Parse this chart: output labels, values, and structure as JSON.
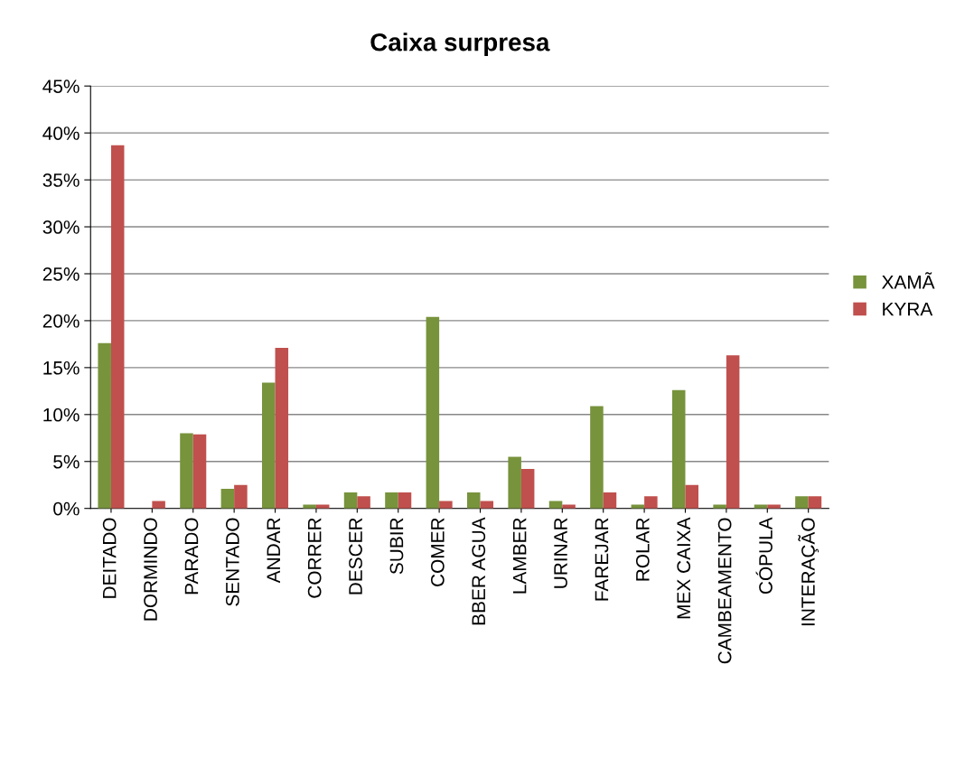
{
  "chart_data": {
    "type": "bar",
    "title": "Caixa surpresa",
    "categories": [
      "DEITADO",
      "DORMINDO",
      "PARADO",
      "SENTADO",
      "ANDAR",
      "CORRER",
      "DESCER",
      "SUBIR",
      "COMER",
      "BBER AGUA",
      "LAMBER",
      "URINAR",
      "FAREJAR",
      "ROLAR",
      "MEX CAIXA",
      "CAMBEAMENTO",
      "CÓPULA",
      "INTERAÇÃO"
    ],
    "series": [
      {
        "name": "XAMÃ",
        "color": "#77933c",
        "values": [
          17.6,
          0,
          8.0,
          2.1,
          13.4,
          0.4,
          1.7,
          1.7,
          20.4,
          1.7,
          5.5,
          0.8,
          10.9,
          0.4,
          12.6,
          0.4,
          0.4,
          1.3
        ]
      },
      {
        "name": "KYRA",
        "color": "#c0504d",
        "values": [
          38.7,
          0.8,
          7.9,
          2.5,
          17.1,
          0.4,
          1.3,
          1.7,
          0.8,
          0.8,
          4.2,
          0.4,
          1.7,
          1.3,
          2.5,
          16.3,
          0.4,
          1.3
        ]
      }
    ],
    "ylim": [
      0,
      45
    ],
    "yticks": [
      {
        "value": 0,
        "label": "0%"
      },
      {
        "value": 5,
        "label": "5%"
      },
      {
        "value": 10,
        "label": "10%"
      },
      {
        "value": 15,
        "label": "15%"
      },
      {
        "value": 20,
        "label": "20%"
      },
      {
        "value": 25,
        "label": "25%"
      },
      {
        "value": 30,
        "label": "30%"
      },
      {
        "value": 35,
        "label": "35%"
      },
      {
        "value": 40,
        "label": "40%"
      },
      {
        "value": 45,
        "label": "45%"
      }
    ],
    "grid": "y",
    "legend": "right"
  }
}
